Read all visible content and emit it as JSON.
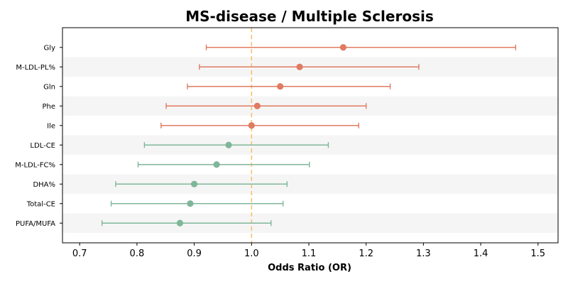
{
  "chart_data": {
    "type": "forest",
    "title": "MS-disease / Multiple Sclerosis",
    "xlabel": "Odds Ratio (OR)",
    "ylabel": "",
    "xlim": [
      0.67,
      1.535
    ],
    "xticks": [
      "0.7",
      "0.8",
      "0.9",
      "1.0",
      "1.1",
      "1.2",
      "1.3",
      "1.4",
      "1.5"
    ],
    "reference_line": 1.0,
    "grid": false,
    "colors": {
      "increase": "#e07b61",
      "decrease": "#7fb69a",
      "reference": "#f5c26b",
      "band": "#f5f5f5",
      "axis": "#000000"
    },
    "rows": [
      {
        "label": "Gly",
        "or": 1.16,
        "lower": 0.921,
        "upper": 1.461,
        "group": "increase"
      },
      {
        "label": "M-LDL-PL%",
        "or": 1.084,
        "lower": 0.909,
        "upper": 1.292,
        "group": "increase"
      },
      {
        "label": "Gln",
        "or": 1.05,
        "lower": 0.888,
        "upper": 1.242,
        "group": "increase"
      },
      {
        "label": "Phe",
        "or": 1.01,
        "lower": 0.851,
        "upper": 1.2,
        "group": "increase"
      },
      {
        "label": "Ile",
        "or": 1.0,
        "lower": 0.842,
        "upper": 1.187,
        "group": "increase"
      },
      {
        "label": "LDL-CE",
        "or": 0.96,
        "lower": 0.813,
        "upper": 1.134,
        "group": "decrease"
      },
      {
        "label": "M-LDL-FC%",
        "or": 0.939,
        "lower": 0.802,
        "upper": 1.101,
        "group": "decrease"
      },
      {
        "label": "DHA%",
        "or": 0.9,
        "lower": 0.763,
        "upper": 1.062,
        "group": "decrease"
      },
      {
        "label": "Total-CE",
        "or": 0.893,
        "lower": 0.755,
        "upper": 1.055,
        "group": "decrease"
      },
      {
        "label": "PUFA/MUFA",
        "or": 0.875,
        "lower": 0.739,
        "upper": 1.034,
        "group": "decrease"
      }
    ]
  }
}
